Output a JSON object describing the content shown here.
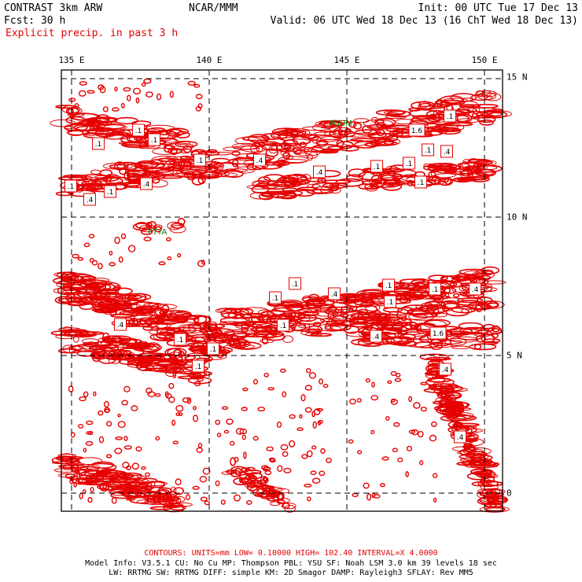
{
  "header": {
    "title_left": "CONTRAST  3km ARW",
    "fcst_label": "Fcst:   30 h",
    "field_name": "Explicit precip. in past 3 h",
    "center": "NCAR/MMM",
    "init": "Init: 00 UTC Tue 17 Dec 13",
    "valid": "Valid: 06 UTC Wed 18 Dec 13 (16 ChT Wed 18 Dec 13)"
  },
  "map": {
    "lon_labels": [
      "135 E",
      "140 E",
      "145 E",
      "150 E"
    ],
    "lat_labels": [
      "15 N",
      "10 N",
      "5 N",
      "0"
    ],
    "stations": [
      "PGUM",
      "PTYA"
    ],
    "contour_labels": [
      ".1",
      ".1",
      ".1",
      ".1",
      ".4",
      ".4",
      ".1",
      ".1",
      ".4",
      ".1",
      "1.6",
      ".1",
      ".1",
      ".4",
      ".1",
      ".4",
      ".1",
      ".1",
      ".1",
      ".4",
      ".1",
      ".4",
      ".1",
      ".1",
      ".4",
      ".1",
      ".4",
      "1.6",
      ".1",
      ".1",
      ".1",
      ".4",
      ".4"
    ],
    "colors": {
      "contour": "#e60000",
      "station": "#008000",
      "grid": "#000000"
    }
  },
  "footer": {
    "contours": "CONTOURS:  UNITS=mm  LOW= 0.10000      HIGH=  102.40      INTERVAL=X  4.0000",
    "model_line1": "Model Info: V3.5.1    CU: No Cu     MP: Thompson     PBL: YSU      SF: Noah LSM     3.0 km  39 levels   18 sec",
    "model_line2": "LW: RRTMG    SW: RRTMG  DIFF: simple KM: 2D Smagor DAMP: Rayleigh3  SFLAY: Rev MM5"
  }
}
